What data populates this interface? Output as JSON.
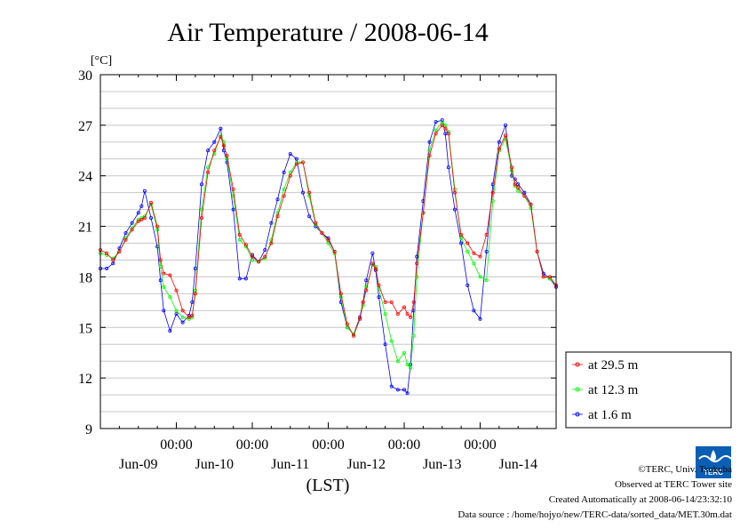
{
  "chart_data": {
    "type": "line",
    "title": "Air Temperature / 2008-06-14",
    "ylabel": "[°C]",
    "xlabel": "(LST)",
    "ylim": [
      9,
      30
    ],
    "yticks": [
      9,
      12,
      15,
      18,
      21,
      24,
      27,
      30
    ],
    "xlim": [
      0,
      144
    ],
    "xtick_labels": [
      "00:00",
      "00:00",
      "00:00",
      "00:00",
      "00:00"
    ],
    "xtick_hours": [
      24,
      48,
      72,
      96,
      120
    ],
    "date_labels": [
      "Jun-09",
      "Jun-10",
      "Jun-11",
      "Jun-12",
      "Jun-13",
      "Jun-14"
    ],
    "date_label_hours": [
      12,
      36,
      60,
      84,
      108,
      132
    ],
    "grid": true,
    "legend_position": "right",
    "series": [
      {
        "name": "at 29.5 m",
        "color": "#ff0000",
        "x": [
          0,
          2,
          4,
          6,
          8,
          10,
          12,
          13,
          14,
          16,
          18,
          19,
          20,
          22,
          24,
          26,
          28,
          29,
          30,
          32,
          34,
          36,
          38,
          39,
          40,
          42,
          44,
          46,
          48,
          50,
          52,
          54,
          56,
          58,
          60,
          62,
          64,
          66,
          68,
          70,
          72,
          74,
          76,
          78,
          80,
          82,
          83,
          84,
          86,
          87,
          88,
          90,
          92,
          94,
          96,
          97,
          98,
          99,
          100,
          102,
          104,
          106,
          108,
          109,
          110,
          112,
          114,
          116,
          118,
          120,
          122,
          124,
          126,
          128,
          130,
          131,
          132,
          134,
          136,
          138,
          140,
          142,
          144
        ],
        "y": [
          19.6,
          19.4,
          19.0,
          19.5,
          20.2,
          20.8,
          21.3,
          21.4,
          21.5,
          22.4,
          21.0,
          19.0,
          18.2,
          18.1,
          17.2,
          16.0,
          15.6,
          15.7,
          17.0,
          21.5,
          24.2,
          25.5,
          26.3,
          25.8,
          25.2,
          23.2,
          20.5,
          19.9,
          19.2,
          18.9,
          19.2,
          20.0,
          21.6,
          22.8,
          24.0,
          24.7,
          24.8,
          23.0,
          21.2,
          20.6,
          20.2,
          19.5,
          17.0,
          15.2,
          14.5,
          15.5,
          16.5,
          17.2,
          18.8,
          18.5,
          17.5,
          16.5,
          16.5,
          15.8,
          16.2,
          15.8,
          15.6,
          16.5,
          18.8,
          21.8,
          25.2,
          26.5,
          27.0,
          26.8,
          26.5,
          23.0,
          20.5,
          20.0,
          19.4,
          19.2,
          20.5,
          23.0,
          25.6,
          26.4,
          24.5,
          23.5,
          23.3,
          22.8,
          22.3,
          19.5,
          18.0,
          18.0,
          17.5
        ]
      },
      {
        "name": "at 12.3 m",
        "color": "#00ff00",
        "x": [
          0,
          2,
          4,
          6,
          8,
          10,
          12,
          13,
          14,
          16,
          18,
          19,
          20,
          22,
          24,
          26,
          28,
          29,
          30,
          32,
          34,
          36,
          38,
          39,
          40,
          42,
          44,
          46,
          48,
          50,
          52,
          54,
          56,
          58,
          60,
          62,
          64,
          66,
          68,
          70,
          72,
          74,
          76,
          78,
          80,
          82,
          83,
          84,
          86,
          87,
          88,
          90,
          92,
          94,
          96,
          97,
          98,
          99,
          100,
          102,
          104,
          106,
          108,
          109,
          110,
          112,
          114,
          116,
          118,
          120,
          122,
          124,
          126,
          128,
          130,
          131,
          132,
          134,
          136,
          138,
          140,
          142,
          144
        ],
        "y": [
          19.4,
          19.3,
          19.1,
          19.5,
          20.3,
          20.9,
          21.4,
          21.5,
          21.6,
          22.3,
          20.8,
          18.6,
          17.4,
          16.8,
          16.0,
          15.6,
          15.5,
          15.6,
          17.2,
          22.0,
          24.5,
          25.3,
          26.4,
          26.0,
          25.0,
          22.8,
          20.2,
          19.8,
          19.0,
          18.9,
          19.1,
          20.2,
          21.8,
          23.2,
          24.2,
          24.8,
          24.8,
          22.8,
          21.1,
          20.6,
          20.0,
          19.4,
          16.8,
          15.0,
          14.6,
          15.5,
          16.3,
          17.4,
          18.7,
          18.6,
          17.3,
          15.8,
          14.2,
          13.0,
          13.5,
          12.8,
          12.6,
          14.5,
          18.0,
          21.8,
          25.5,
          26.7,
          27.2,
          27.0,
          26.6,
          23.2,
          20.3,
          19.5,
          18.8,
          18.0,
          17.8,
          22.5,
          25.5,
          26.2,
          24.3,
          23.4,
          23.1,
          22.8,
          22.1,
          19.5,
          18.0,
          17.9,
          17.5
        ]
      },
      {
        "name": "at 1.6 m",
        "color": "#0000ff",
        "x": [
          0,
          2,
          4,
          6,
          8,
          10,
          12,
          13,
          14,
          16,
          18,
          19,
          20,
          22,
          24,
          26,
          28,
          29,
          30,
          32,
          34,
          36,
          38,
          39,
          40,
          42,
          44,
          46,
          48,
          50,
          52,
          54,
          56,
          58,
          60,
          62,
          64,
          66,
          68,
          70,
          72,
          74,
          76,
          78,
          80,
          82,
          83,
          84,
          86,
          87,
          88,
          90,
          92,
          94,
          96,
          97,
          98,
          99,
          100,
          102,
          104,
          106,
          108,
          109,
          110,
          112,
          114,
          116,
          118,
          120,
          122,
          124,
          126,
          128,
          130,
          131,
          132,
          134,
          136,
          138,
          140,
          142,
          144
        ],
        "y": [
          18.5,
          18.5,
          18.8,
          19.7,
          20.6,
          21.2,
          21.8,
          22.2,
          23.1,
          21.5,
          19.8,
          17.8,
          16.0,
          14.8,
          15.8,
          15.3,
          15.7,
          16.5,
          18.5,
          23.5,
          25.5,
          26.0,
          26.8,
          25.5,
          24.8,
          22.0,
          17.9,
          17.9,
          19.3,
          18.9,
          19.6,
          21.2,
          22.6,
          24.2,
          25.3,
          25.0,
          23.0,
          21.6,
          21.0,
          20.6,
          20.3,
          19.5,
          16.5,
          15.0,
          14.6,
          15.6,
          16.5,
          17.8,
          19.4,
          18.4,
          16.8,
          14.0,
          11.5,
          11.3,
          11.3,
          11.1,
          12.8,
          16.0,
          19.2,
          22.5,
          26.0,
          27.2,
          27.3,
          26.5,
          24.5,
          22.0,
          20.0,
          17.5,
          16.0,
          15.5,
          19.5,
          23.5,
          26.0,
          27.0,
          24.0,
          23.8,
          23.5,
          23.0,
          22.3,
          19.5,
          18.2,
          17.9,
          17.4
        ]
      }
    ]
  },
  "footer": {
    "copyright": "©TERC, Univ. Tsukuba",
    "site": "Observed at TERC Tower site",
    "created": "Created Automatically at 2008-06-14/23:32:10",
    "source": "Data source : /home/hojyo/new/TERC-data/sorted_data/MET.30m.dat"
  },
  "logo": {
    "text": "TERC"
  }
}
